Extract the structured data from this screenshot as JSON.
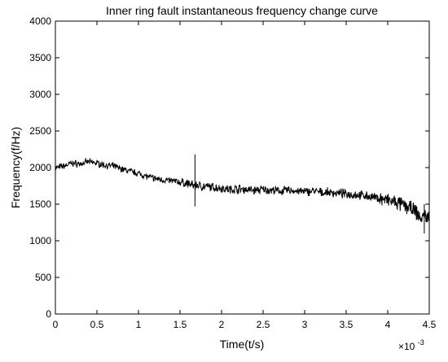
{
  "chart_data": {
    "type": "line",
    "title": "Inner ring fault instantaneous frequency change curve",
    "xlabel": "Time(t/s)",
    "ylabel": "Frequency(f/Hz)",
    "x_multiplier_label": "×10",
    "x_multiplier_exponent": "-3",
    "xlim": [
      0,
      4.5
    ],
    "ylim": [
      0,
      4000
    ],
    "x_ticks": [
      0,
      0.5,
      1,
      1.5,
      2,
      2.5,
      3,
      3.5,
      4,
      4.5
    ],
    "x_tick_labels": [
      "0",
      "0.5",
      "1",
      "1.5",
      "2",
      "2.5",
      "3",
      "3.5",
      "4",
      "4.5"
    ],
    "y_ticks": [
      0,
      500,
      1000,
      1500,
      2000,
      2500,
      3000,
      3500,
      4000
    ],
    "y_tick_labels": [
      "0",
      "500",
      "1000",
      "1500",
      "2000",
      "2500",
      "3000",
      "3500",
      "4000"
    ],
    "grid": false,
    "line_color": "#000000",
    "series": [
      {
        "x": [
          0,
          0.1,
          0.2,
          0.3,
          0.4,
          0.5,
          0.6,
          0.7,
          0.8,
          0.9,
          1.0,
          1.1,
          1.2,
          1.3,
          1.4,
          1.5,
          1.6,
          1.65,
          1.68,
          1.7,
          1.8,
          1.9,
          2.0,
          2.1,
          2.2,
          2.3,
          2.4,
          2.5,
          2.6,
          2.7,
          2.8,
          2.9,
          3.0,
          3.1,
          3.2,
          3.3,
          3.4,
          3.5,
          3.6,
          3.7,
          3.8,
          3.9,
          4.0,
          4.1,
          4.2,
          4.3,
          4.35,
          4.4,
          4.45,
          4.5
        ],
        "y": [
          2000,
          2020,
          2060,
          2050,
          2080,
          2060,
          2030,
          2020,
          1980,
          1950,
          1920,
          1880,
          1850,
          1830,
          1820,
          1800,
          1780,
          1760,
          1750,
          1760,
          1740,
          1730,
          1720,
          1700,
          1710,
          1700,
          1690,
          1700,
          1690,
          1680,
          1690,
          1680,
          1670,
          1680,
          1660,
          1660,
          1650,
          1640,
          1630,
          1620,
          1600,
          1580,
          1550,
          1520,
          1480,
          1430,
          1380,
          1300,
          1350,
          1300
        ]
      }
    ],
    "annotations": [
      {
        "x": 1.68,
        "y_low": 1470,
        "y_high": 2180
      },
      {
        "x": 4.44,
        "y_low": 1100,
        "y_high": 1500
      }
    ]
  }
}
